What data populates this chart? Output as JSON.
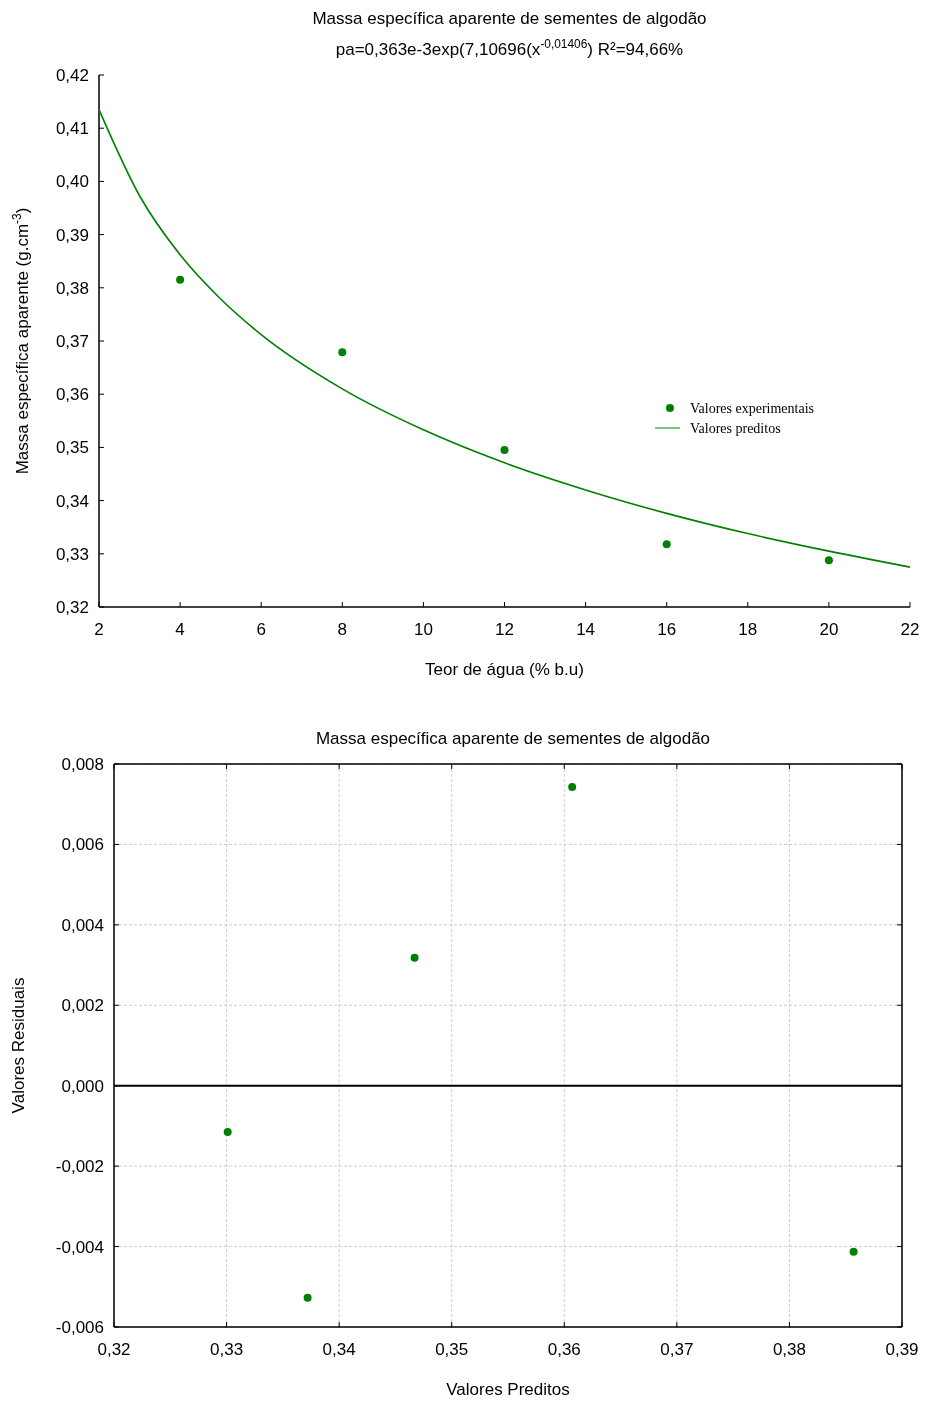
{
  "chart_data": [
    {
      "type": "scatter",
      "title": "Massa específica aparente de sementes de algodão",
      "subtitle": "pa=0,363e-3exp(7,10696(x$^{-0,01406}$)  R²=94,66%",
      "xlabel": "Teor de água (% b.u)",
      "ylabel": "Massa específica aparente (g.cm$^{-3}$)",
      "xlim": [
        2,
        22
      ],
      "xticks": [
        2,
        4,
        6,
        8,
        10,
        12,
        14,
        16,
        18,
        20,
        22
      ],
      "ylim": [
        0.32,
        0.42
      ],
      "yticks": [
        {
          "value": 0.32,
          "label": "0,32"
        },
        {
          "value": 0.33,
          "label": "0,33"
        },
        {
          "value": 0.34,
          "label": "0,34"
        },
        {
          "value": 0.35,
          "label": "0,35"
        },
        {
          "value": 0.36,
          "label": "0,36"
        },
        {
          "value": 0.37,
          "label": "0,37"
        },
        {
          "value": 0.38,
          "label": "0,38"
        },
        {
          "value": 0.39,
          "label": "0,39"
        },
        {
          "value": 0.4,
          "label": "0,40"
        },
        {
          "value": 0.41,
          "label": "0,41"
        },
        {
          "value": 0.42,
          "label": "0,42"
        }
      ],
      "grid": false,
      "legend": "right",
      "marker": "circle",
      "series": [
        {
          "name": "Valores experimentais",
          "color": "#008000",
          "x": [
            4,
            8,
            12,
            16,
            20
          ],
          "values": [
            0.3815,
            0.3679,
            0.3495,
            0.3318,
            0.3288
          ]
        },
        {
          "type": "line",
          "name": "Valores preditos",
          "marker": "none",
          "color": "#008000",
          "x": [
            2,
            3,
            4,
            5,
            6,
            8,
            10,
            12,
            14,
            16,
            18,
            20,
            22
          ],
          "values": [
            0.4135,
            0.3973,
            0.3862,
            0.3779,
            0.3712,
            0.361,
            0.3533,
            0.3471,
            0.342,
            0.3376,
            0.3338,
            0.3305,
            0.3275
          ]
        }
      ]
    },
    {
      "type": "scatter",
      "title": "Massa específica aparente de sementes de algodão",
      "xlabel": "Valores Preditos",
      "ylabel": "Valores Residuais",
      "xlim": [
        0.32,
        0.39
      ],
      "xticks": [
        {
          "value": 0.32,
          "label": "0,32"
        },
        {
          "value": 0.33,
          "label": "0,33"
        },
        {
          "value": 0.34,
          "label": "0,34"
        },
        {
          "value": 0.35,
          "label": "0,35"
        },
        {
          "value": 0.36,
          "label": "0,36"
        },
        {
          "value": 0.37,
          "label": "0,37"
        },
        {
          "value": 0.38,
          "label": "0,38"
        },
        {
          "value": 0.39,
          "label": "0,39"
        }
      ],
      "ylim": [
        -0.006,
        0.008
      ],
      "yticks": [
        {
          "value": -0.006,
          "label": "-0,006"
        },
        {
          "value": -0.004,
          "label": "-0,004"
        },
        {
          "value": -0.002,
          "label": "-0,002"
        },
        {
          "value": 0,
          "label": "0,000"
        },
        {
          "value": 0.002,
          "label": "0,002"
        },
        {
          "value": 0.004,
          "label": "0,004"
        },
        {
          "value": 0.006,
          "label": "0,006"
        },
        {
          "value": 0.008,
          "label": "0,008"
        }
      ],
      "grid": true,
      "marker": "circle",
      "ref_lines": [
        {
          "axis": "y",
          "value": 0,
          "color": "#000000"
        }
      ],
      "series": [
        {
          "color": "#008000",
          "x": [
            0.3301,
            0.3372,
            0.3467,
            0.3607,
            0.3857
          ],
          "values": [
            -0.00115,
            -0.00527,
            0.00318,
            0.00743,
            -0.00413
          ]
        }
      ]
    }
  ]
}
